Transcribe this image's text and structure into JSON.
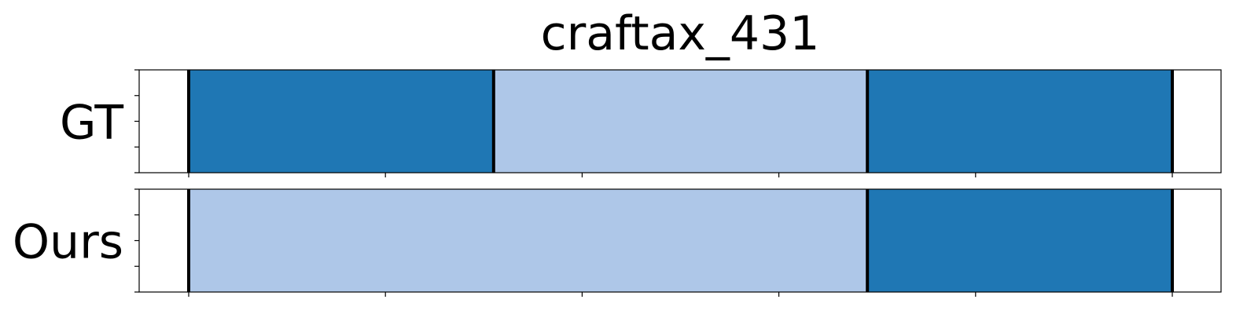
{
  "chart_data": {
    "type": "segmentation",
    "title": "craftax_431",
    "xlim": [
      0,
      1
    ],
    "colors": {
      "dark": "#1f77b4",
      "light": "#aec7e8",
      "boundary": "#000000"
    },
    "rows": [
      {
        "label": "GT",
        "segments": [
          {
            "start": 0.0,
            "end": 0.31,
            "color": "dark"
          },
          {
            "start": 0.31,
            "end": 0.69,
            "color": "light"
          },
          {
            "start": 0.69,
            "end": 1.0,
            "color": "dark"
          }
        ],
        "boundaries": [
          0.0,
          0.31,
          0.69,
          1.0
        ]
      },
      {
        "label": "Ours",
        "segments": [
          {
            "start": 0.0,
            "end": 0.69,
            "color": "light"
          },
          {
            "start": 0.69,
            "end": 1.0,
            "color": "dark"
          }
        ],
        "boundaries": [
          0.0,
          0.69,
          1.0
        ]
      }
    ],
    "xticks": [
      0,
      0.2,
      0.4,
      0.6,
      0.8,
      1.0
    ],
    "yticks_per_row": 5,
    "legend": "none",
    "grid": false
  }
}
